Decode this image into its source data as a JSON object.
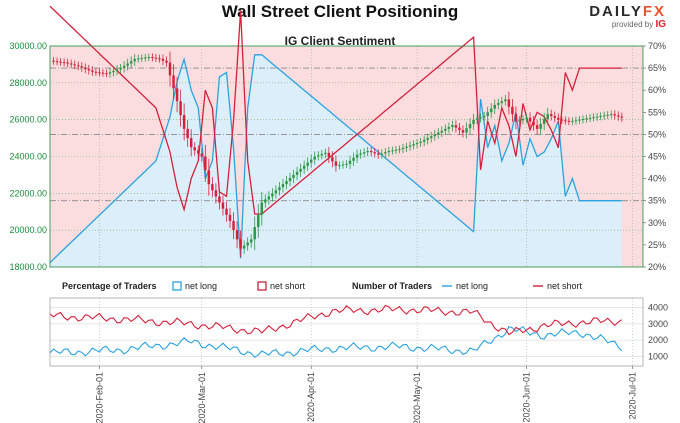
{
  "header": {
    "title": "Wall Street Client Positioning",
    "subtitle": "IG Client Sentiment",
    "logo_daily": "DAILY",
    "logo_fx": "FX",
    "logo_provided": "provided by",
    "logo_ig": "IG"
  },
  "colors": {
    "net_long": "#29a3e0",
    "net_short": "#d6203a",
    "long_fill": "#dceefa",
    "short_fill": "#fbdde0",
    "candle_up": "#2a9a45",
    "candle_down": "#d6203a",
    "axis_green": "#1e8a3b"
  },
  "chart_data": [
    {
      "type": "candlestick",
      "title": "IG Client Sentiment",
      "y_left_ticks": [
        "18000.00",
        "20000.00",
        "22000.00",
        "24000.00",
        "26000.00",
        "28000.00",
        "30000.00"
      ],
      "y_right_ticks": [
        "20%",
        "25%",
        "30%",
        "35%",
        "40%",
        "45%",
        "50%",
        "55%",
        "60%",
        "65%",
        "70%"
      ],
      "ylim_left": [
        18000,
        30000
      ],
      "ylim_right": [
        20,
        70
      ],
      "reference_lines_pct": [
        65,
        50,
        35
      ],
      "price_anchors": {
        "x_index": [
          0,
          4,
          8,
          12,
          16,
          20,
          24,
          28,
          31,
          33,
          36,
          38,
          40,
          43,
          45,
          48,
          51,
          54,
          57,
          60,
          63,
          66,
          69,
          72,
          75,
          78,
          81,
          84,
          87,
          90,
          93,
          96,
          99,
          102,
          105,
          108,
          111,
          114,
          117,
          120,
          123,
          126,
          129,
          132,
          135,
          138,
          141,
          144,
          147,
          150,
          153,
          156,
          159,
          162
        ],
        "close": [
          29200,
          29100,
          28900,
          28600,
          28500,
          28800,
          29300,
          29400,
          29300,
          29100,
          27000,
          25500,
          24500,
          24000,
          22500,
          21500,
          20500,
          19000,
          19500,
          21500,
          22000,
          22500,
          23000,
          23500,
          24000,
          24200,
          23500,
          23600,
          24100,
          24300,
          24100,
          24300,
          24400,
          24600,
          24800,
          25100,
          25400,
          25700,
          25300,
          26000,
          26200,
          26800,
          27100,
          25900,
          26100,
          25500,
          26300,
          26000,
          25900,
          26000,
          26100,
          26200,
          26300,
          26100
        ]
      },
      "net_long_pct_anchors": {
        "x_index": [
          0,
          30,
          34,
          36,
          38,
          40,
          42,
          44,
          46,
          48,
          50,
          52,
          54,
          56,
          58,
          60,
          120,
          122,
          124,
          126,
          128,
          130,
          132,
          134,
          136,
          138,
          140,
          142,
          144,
          146,
          148,
          150,
          162
        ],
        "values": [
          21,
          44,
          54,
          62,
          67,
          60,
          56,
          40,
          44,
          63,
          64,
          47,
          22,
          56,
          68,
          68,
          28,
          58,
          47,
          52,
          44,
          48,
          55,
          43,
          49,
          45,
          46,
          49,
          53,
          36,
          40,
          35,
          35
        ]
      }
    },
    {
      "type": "line",
      "title": "Number of Traders",
      "y_right_ticks": [
        "1000",
        "2000",
        "3000",
        "4000"
      ],
      "ylim": [
        400,
        4600
      ],
      "series": [
        {
          "name": "net long",
          "x_index": [
            0,
            20,
            40,
            60,
            80,
            100,
            120,
            130,
            140,
            150,
            162
          ],
          "values": [
            1200,
            1400,
            1900,
            1100,
            1500,
            1600,
            1300,
            2700,
            2300,
            2500,
            1600
          ]
        },
        {
          "name": "net short",
          "x_index": [
            0,
            20,
            40,
            60,
            80,
            100,
            120,
            130,
            140,
            150,
            162
          ],
          "values": [
            3500,
            3300,
            3000,
            2500,
            3800,
            3900,
            3700,
            2400,
            2900,
            3100,
            3200
          ]
        }
      ]
    }
  ],
  "x_axis": {
    "ticks": [
      "2020-Feb-01",
      "2020-Mar-01",
      "2020-Apr-01",
      "2020-May-01",
      "2020-Jun-01",
      "2020-Jul-01"
    ],
    "tick_index": [
      14,
      43,
      74,
      104,
      135,
      165
    ]
  },
  "legends": {
    "pct_heading": "Percentage of Traders",
    "pct_long": "net long",
    "pct_short": "net short",
    "num_heading": "Number of Traders",
    "num_long": "net long",
    "num_short": "net short"
  }
}
